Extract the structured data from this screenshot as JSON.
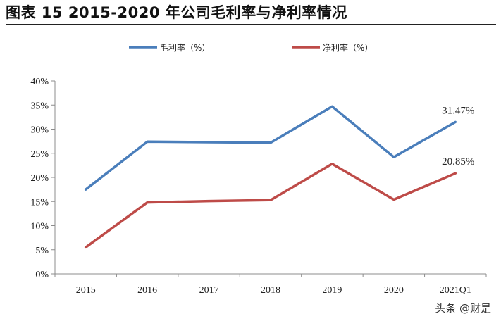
{
  "title": "图表 15 2015-2020 年公司毛利率与净利率情况",
  "watermark": "头条 @财是",
  "chart_data": {
    "type": "line",
    "title": "",
    "xlabel": "",
    "ylabel": "",
    "categories": [
      "2015",
      "2016",
      "2017",
      "2018",
      "2019",
      "2020",
      "2021Q1"
    ],
    "ylim": [
      0,
      40
    ],
    "yticks": [
      "0%",
      "5%",
      "10%",
      "15%",
      "20%",
      "25%",
      "30%",
      "35%",
      "40%"
    ],
    "grid": false,
    "legend_position": "top",
    "series": [
      {
        "name": "毛利率（%）",
        "color": "#4a7ebb",
        "values": [
          17.5,
          27.4,
          27.3,
          27.2,
          34.7,
          24.2,
          31.47
        ],
        "end_label": "31.47%"
      },
      {
        "name": "净利率（%）",
        "color": "#be4b48",
        "values": [
          5.5,
          14.8,
          15.1,
          15.3,
          22.8,
          15.4,
          20.85
        ],
        "end_label": "20.85%"
      }
    ]
  }
}
